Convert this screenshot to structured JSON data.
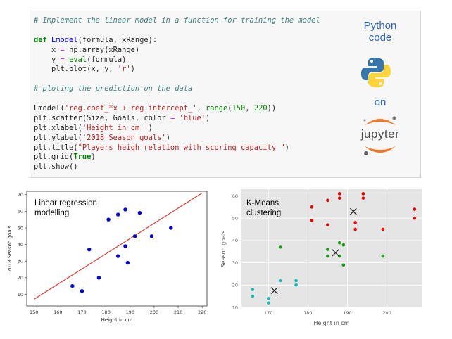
{
  "code": {
    "lines": [
      [
        {
          "t": "# Implement the linear model in a function for training the model",
          "c": "comment"
        }
      ],
      [],
      [
        {
          "t": "def ",
          "c": "kw"
        },
        {
          "t": "Lmodel",
          "c": "fn"
        },
        {
          "t": "(formula, xRange):",
          "c": ""
        }
      ],
      [
        {
          "t": "    x ",
          "c": ""
        },
        {
          "t": "=",
          "c": "op"
        },
        {
          "t": " np.array(xRange)",
          "c": ""
        }
      ],
      [
        {
          "t": "    y ",
          "c": ""
        },
        {
          "t": "=",
          "c": "op"
        },
        {
          "t": " ",
          "c": ""
        },
        {
          "t": "eval",
          "c": "num"
        },
        {
          "t": "(formula)",
          "c": ""
        }
      ],
      [
        {
          "t": "    plt.plot(x, y, ",
          "c": ""
        },
        {
          "t": "'r'",
          "c": "str"
        },
        {
          "t": ")",
          "c": ""
        }
      ],
      [],
      [
        {
          "t": "# ploting the prediction on the data",
          "c": "comment"
        }
      ],
      [],
      [
        {
          "t": "Lmodel(",
          "c": ""
        },
        {
          "t": "'reg.coef_*x + reg.intercept_'",
          "c": "str"
        },
        {
          "t": ", ",
          "c": ""
        },
        {
          "t": "range",
          "c": "num"
        },
        {
          "t": "(",
          "c": ""
        },
        {
          "t": "150",
          "c": "num"
        },
        {
          "t": ", ",
          "c": ""
        },
        {
          "t": "220",
          "c": "num"
        },
        {
          "t": "))",
          "c": ""
        }
      ],
      [
        {
          "t": "plt.scatter(Size, Goals, color ",
          "c": ""
        },
        {
          "t": "=",
          "c": "op"
        },
        {
          "t": " ",
          "c": ""
        },
        {
          "t": "'blue'",
          "c": "str"
        },
        {
          "t": ")",
          "c": ""
        }
      ],
      [
        {
          "t": "plt.xlabel(",
          "c": ""
        },
        {
          "t": "'Height in cm '",
          "c": "str"
        },
        {
          "t": ")",
          "c": ""
        }
      ],
      [
        {
          "t": "plt.ylabel(",
          "c": ""
        },
        {
          "t": "'2018 Season goals'",
          "c": "str"
        },
        {
          "t": ")",
          "c": ""
        }
      ],
      [
        {
          "t": "plt.title(",
          "c": ""
        },
        {
          "t": "\"Players heigh relation with scoring capacity \"",
          "c": "str"
        },
        {
          "t": ")",
          "c": ""
        }
      ],
      [
        {
          "t": "plt.grid(",
          "c": ""
        },
        {
          "t": "True",
          "c": "kw"
        },
        {
          "t": ")",
          "c": ""
        }
      ],
      [
        {
          "t": "plt.show()",
          "c": ""
        }
      ]
    ]
  },
  "promo": {
    "python_code": "Python\ncode",
    "on": "on",
    "jupyter": "jupyter",
    "colors": {
      "python_blue": "#3776ab",
      "python_yellow": "#ffd43b",
      "jupyter_orange": "#f37726"
    }
  },
  "chart_data": [
    {
      "type": "scatter",
      "caption": "Linear regression\nmodelling",
      "xlabel": "Height in cm",
      "ylabel": "2018 Season goals",
      "xlim": [
        147,
        222
      ],
      "ylim": [
        3,
        72
      ],
      "xticks": [
        150,
        160,
        170,
        180,
        190,
        200,
        210,
        220
      ],
      "yticks": [
        10,
        20,
        30,
        40,
        50,
        60,
        70
      ],
      "grid": false,
      "points_color": "#0000cc",
      "line_color": "#d43a2f",
      "points": [
        [
          166,
          15
        ],
        [
          170,
          12
        ],
        [
          173,
          37
        ],
        [
          177,
          20
        ],
        [
          181,
          55
        ],
        [
          185,
          33
        ],
        [
          185,
          58
        ],
        [
          188,
          61
        ],
        [
          188,
          39
        ],
        [
          189,
          29
        ],
        [
          192,
          45
        ],
        [
          194,
          59
        ],
        [
          199,
          45
        ],
        [
          207,
          50
        ]
      ],
      "line": {
        "x": [
          150,
          220
        ],
        "y": [
          7,
          71
        ]
      }
    },
    {
      "type": "scatter",
      "caption": "K-Means\nclustering",
      "xlabel": "Height in cm",
      "ylabel": "Season goals",
      "xlim": [
        163,
        209
      ],
      "ylim": [
        10,
        63
      ],
      "xticks": [
        170,
        180,
        190,
        200
      ],
      "yticks": [
        10,
        20,
        30,
        40,
        50,
        60
      ],
      "grid": true,
      "background": "#e5e5e5",
      "clusters": [
        {
          "color": "#19b7b7",
          "points": [
            [
              166,
              18
            ],
            [
              166,
              15
            ],
            [
              170,
              14
            ],
            [
              170,
              12
            ],
            [
              173,
              22
            ],
            [
              177,
              22
            ],
            [
              177,
              20
            ]
          ],
          "centroid": [
            171.5,
            17.5
          ]
        },
        {
          "color": "#1a9a1a",
          "points": [
            [
              173,
              37
            ],
            [
              185,
              36
            ],
            [
              185,
              33
            ],
            [
              188,
              39
            ],
            [
              188,
              33
            ],
            [
              189,
              38
            ],
            [
              189,
              29
            ],
            [
              199,
              33
            ]
          ],
          "centroid": [
            187,
            34.5
          ]
        },
        {
          "color": "#e60000",
          "points": [
            [
              181,
              55
            ],
            [
              181,
              49
            ],
            [
              185,
              58
            ],
            [
              185,
              47
            ],
            [
              188,
              61
            ],
            [
              188,
              59
            ],
            [
              192,
              48
            ],
            [
              192,
              45
            ],
            [
              194,
              61
            ],
            [
              194,
              59
            ],
            [
              199,
              45
            ],
            [
              207,
              54
            ],
            [
              207,
              50
            ]
          ],
          "centroid": [
            191.5,
            53
          ]
        }
      ]
    }
  ]
}
